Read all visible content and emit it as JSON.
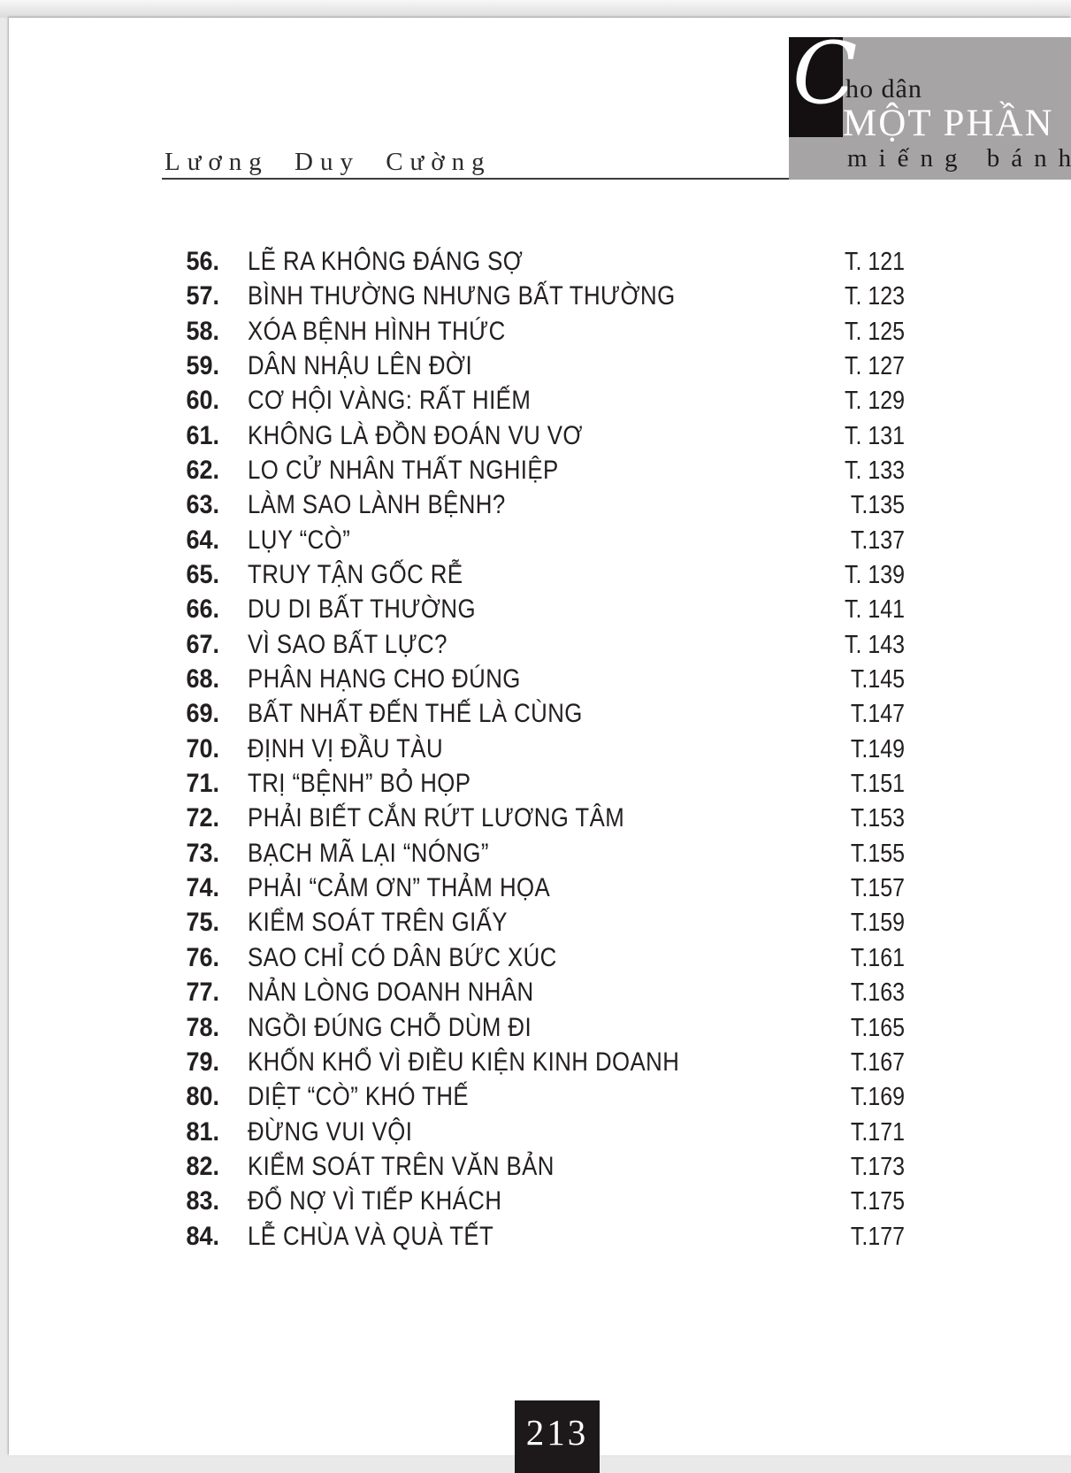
{
  "author": "Lương Duy Cường",
  "brand": {
    "initial": "C",
    "line1": "ho dân",
    "line2": "MỘT PHẦN",
    "line3": "miếng bánh"
  },
  "toc": {
    "entries": [
      {
        "num": "56.",
        "title": "LẼ RA KHÔNG ĐÁNG SỢ",
        "page": "T. 121"
      },
      {
        "num": "57.",
        "title": "BÌNH THƯỜNG NHƯNG BẤT THƯỜNG",
        "page": "T. 123"
      },
      {
        "num": "58.",
        "title": "XÓA BỆNH HÌNH THỨC",
        "page": "T. 125"
      },
      {
        "num": "59.",
        "title": "DÂN NHẬU LÊN ĐỜI",
        "page": "T. 127"
      },
      {
        "num": "60.",
        "title": "CƠ HỘI VÀNG: RẤT HIẾM",
        "page": "T. 129"
      },
      {
        "num": "61.",
        "title": "KHÔNG LÀ ĐỒN ĐOÁN VU VƠ",
        "page": "T. 131"
      },
      {
        "num": "62.",
        "title": "LO CỬ NHÂN THẤT NGHIỆP",
        "page": "T. 133"
      },
      {
        "num": "63.",
        "title": "LÀM SAO LÀNH BỆNH?",
        "page": "T.135"
      },
      {
        "num": "64.",
        "title": "LỤY “CÒ”",
        "page": "T.137"
      },
      {
        "num": "65.",
        "title": "TRUY TẬN GỐC RỄ",
        "page": "T. 139"
      },
      {
        "num": "66.",
        "title": "DU DI BẤT THƯỜNG",
        "page": "T. 141"
      },
      {
        "num": "67.",
        "title": "VÌ SAO BẤT LỰC?",
        "page": "T. 143"
      },
      {
        "num": "68.",
        "title": "PHÂN HẠNG CHO ĐÚNG",
        "page": "T.145"
      },
      {
        "num": "69.",
        "title": "BẤT NHẤT ĐẾN THẾ LÀ CÙNG",
        "page": "T.147"
      },
      {
        "num": "70.",
        "title": "ĐỊNH VỊ ĐẦU TÀU",
        "page": "T.149"
      },
      {
        "num": "71.",
        "title": "TRỊ “BỆNH” BỎ HỌP",
        "page": "T.151"
      },
      {
        "num": "72.",
        "title": "PHẢI BIẾT CẮN RỨT LƯƠNG TÂM",
        "page": "T.153"
      },
      {
        "num": "73.",
        "title": "BẠCH MÃ LẠI “NÓNG”",
        "page": "T.155"
      },
      {
        "num": "74.",
        "title": "PHẢI “CẢM ƠN” THẢM HỌA",
        "page": "T.157"
      },
      {
        "num": "75.",
        "title": "KIỂM SOÁT TRÊN GIẤY",
        "page": "T.159"
      },
      {
        "num": "76.",
        "title": "SAO CHỈ CÓ DÂN BỨC XÚC",
        "page": "T.161"
      },
      {
        "num": "77.",
        "title": "NẢN LÒNG DOANH NHÂN",
        "page": "T.163"
      },
      {
        "num": "78.",
        "title": "NGỒI ĐÚNG CHỖ DÙM ĐI",
        "page": "T.165"
      },
      {
        "num": "79.",
        "title": "KHỐN KHỔ VÌ ĐIỀU KIỆN KINH DOANH",
        "page": "T.167"
      },
      {
        "num": "80.",
        "title": "DIỆT “CÒ” KHÓ THẾ",
        "page": "T.169"
      },
      {
        "num": "81.",
        "title": "ĐỪNG VUI VỘI",
        "page": "T.171"
      },
      {
        "num": "82.",
        "title": "KIỂM SOÁT TRÊN VĂN BẢN",
        "page": "T.173"
      },
      {
        "num": "83.",
        "title": "ĐỔ NỢ VÌ TIẾP KHÁCH",
        "page": "T.175"
      },
      {
        "num": "84.",
        "title": "LỄ CHÙA VÀ QUÀ TẾT",
        "page": "T.177"
      }
    ]
  },
  "footer": {
    "page_number": "213"
  }
}
